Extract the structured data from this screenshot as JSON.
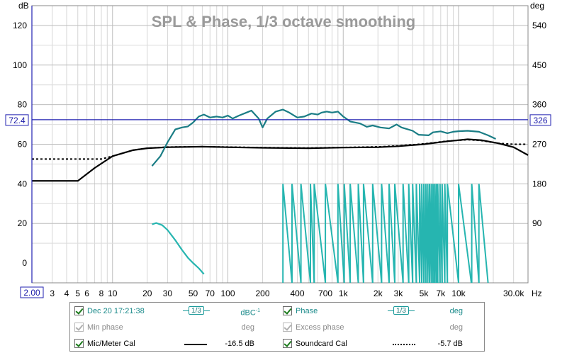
{
  "chart_data": {
    "type": "line",
    "title": "SPL & Phase, 1/3 octave smoothing",
    "left_axis": {
      "unit": "dB",
      "range": [
        -10,
        130
      ],
      "ticks": [
        0,
        20,
        40,
        60,
        80,
        100,
        120
      ]
    },
    "right_axis": {
      "unit": "deg",
      "range": [
        -45,
        585
      ],
      "ticks": [
        90,
        180,
        270,
        360,
        450,
        540
      ]
    },
    "x_axis": {
      "unit": "Hz",
      "scale": "log",
      "range": [
        2,
        40000
      ],
      "tick_labels": [
        {
          "v": 2,
          "t": "2.00"
        },
        {
          "v": 3,
          "t": "3"
        },
        {
          "v": 4,
          "t": "4"
        },
        {
          "v": 5,
          "t": "5"
        },
        {
          "v": 6,
          "t": "6"
        },
        {
          "v": 8,
          "t": "8"
        },
        {
          "v": 10,
          "t": "10"
        },
        {
          "v": 20,
          "t": "20"
        },
        {
          "v": 30,
          "t": "30"
        },
        {
          "v": 50,
          "t": "50"
        },
        {
          "v": 70,
          "t": "70"
        },
        {
          "v": 100,
          "t": "100"
        },
        {
          "v": 200,
          "t": "200"
        },
        {
          "v": 400,
          "t": "400"
        },
        {
          "v": 700,
          "t": "700"
        },
        {
          "v": 1000,
          "t": "1k"
        },
        {
          "v": 2000,
          "t": "2k"
        },
        {
          "v": 3000,
          "t": "3k"
        },
        {
          "v": 5000,
          "t": "5k"
        },
        {
          "v": 7000,
          "t": "7k"
        },
        {
          "v": 10000,
          "t": "10k"
        },
        {
          "v": 30000,
          "t": "30.0k"
        }
      ]
    },
    "cursor": {
      "db_label": "72.4",
      "deg_label": "326",
      "freq_label": "2.00",
      "db": 72.4
    },
    "grid": true,
    "series": [
      {
        "name": "Mic/Meter Cal",
        "color": "#000000",
        "style": "solid",
        "axis": "left",
        "points": [
          [
            2,
            41.5
          ],
          [
            5,
            41.5
          ],
          [
            7,
            48
          ],
          [
            10,
            54
          ],
          [
            15,
            57
          ],
          [
            20,
            58
          ],
          [
            30,
            58.5
          ],
          [
            60,
            58.8
          ],
          [
            100,
            58.5
          ],
          [
            200,
            58.2
          ],
          [
            500,
            58
          ],
          [
            1000,
            58.3
          ],
          [
            2000,
            58.5
          ],
          [
            3000,
            59
          ],
          [
            5000,
            60
          ],
          [
            8000,
            61.5
          ],
          [
            12000,
            62.5
          ],
          [
            16000,
            62
          ],
          [
            22000,
            60.5
          ],
          [
            30000,
            58.5
          ],
          [
            40000,
            54.5
          ]
        ]
      },
      {
        "name": "Soundcard Cal",
        "color": "#000000",
        "style": "dashed",
        "axis": "left",
        "points": [
          [
            2,
            52.5
          ],
          [
            8,
            52.5
          ],
          [
            10,
            54
          ],
          [
            15,
            57
          ],
          [
            20,
            58
          ],
          [
            30,
            58.6
          ],
          [
            60,
            58.8
          ],
          [
            100,
            58.6
          ],
          [
            200,
            58.3
          ],
          [
            500,
            58.1
          ],
          [
            1000,
            58.4
          ],
          [
            2000,
            58.7
          ],
          [
            3000,
            59.2
          ],
          [
            5000,
            60.2
          ],
          [
            8000,
            61.6
          ],
          [
            12000,
            62.3
          ],
          [
            16000,
            61.8
          ],
          [
            22000,
            60.5
          ],
          [
            30000,
            60
          ],
          [
            38000,
            60
          ]
        ]
      },
      {
        "name": "Dec 20 17:21:38",
        "color": "#1a7d85",
        "style": "solid",
        "axis": "left",
        "points": [
          [
            22,
            49
          ],
          [
            26,
            54
          ],
          [
            30,
            61
          ],
          [
            35,
            67.5
          ],
          [
            40,
            68.5
          ],
          [
            45,
            69
          ],
          [
            50,
            71
          ],
          [
            56,
            74
          ],
          [
            62,
            75
          ],
          [
            70,
            73.5
          ],
          [
            80,
            74
          ],
          [
            90,
            73.5
          ],
          [
            100,
            74.5
          ],
          [
            110,
            73
          ],
          [
            125,
            74.5
          ],
          [
            145,
            76
          ],
          [
            160,
            77
          ],
          [
            185,
            73
          ],
          [
            200,
            68.5
          ],
          [
            220,
            73
          ],
          [
            260,
            76.5
          ],
          [
            300,
            77.5
          ],
          [
            340,
            76
          ],
          [
            400,
            73.5
          ],
          [
            460,
            74
          ],
          [
            530,
            75.5
          ],
          [
            600,
            75
          ],
          [
            650,
            76
          ],
          [
            720,
            76.5
          ],
          [
            800,
            76
          ],
          [
            900,
            76.5
          ],
          [
            1000,
            74
          ],
          [
            1150,
            71.5
          ],
          [
            1400,
            70.5
          ],
          [
            1600,
            68.8
          ],
          [
            1800,
            69.5
          ],
          [
            2100,
            68.5
          ],
          [
            2500,
            68
          ],
          [
            2900,
            70
          ],
          [
            3200,
            68.5
          ],
          [
            4000,
            66.8
          ],
          [
            4500,
            64.8
          ],
          [
            5500,
            64.5
          ],
          [
            6000,
            66
          ],
          [
            7000,
            66.5
          ],
          [
            8000,
            65.6
          ],
          [
            9000,
            66.3
          ],
          [
            10000,
            66.6
          ],
          [
            12000,
            66.8
          ],
          [
            15000,
            66.3
          ],
          [
            18000,
            64.5
          ],
          [
            21000,
            62.7
          ]
        ]
      },
      {
        "name": "Phase",
        "color": "#26b5b0",
        "style": "solid",
        "axis": "right",
        "points": [
          [
            22,
            88
          ],
          [
            24,
            91
          ],
          [
            27,
            86
          ],
          [
            30,
            75
          ],
          [
            35,
            52
          ],
          [
            40,
            30
          ],
          [
            45,
            12
          ],
          [
            50,
            0
          ],
          [
            56,
            -12
          ],
          [
            62,
            -25
          ]
        ]
      }
    ]
  },
  "legend": {
    "row1": {
      "left_label": "Dec 20 17:21:38",
      "left_smoothing": "1/3",
      "left_unit": "dBC",
      "left_unit_sup": "-1",
      "right_label": "Phase",
      "right_smoothing": "1/3",
      "right_unit": "deg"
    },
    "row2": {
      "left_label": "Min phase",
      "left_unit": "deg",
      "right_label": "Excess phase",
      "right_unit": "deg"
    },
    "row3": {
      "left_label": "Mic/Meter Cal",
      "left_value": "-16.5 dB",
      "right_label": "Soundcard Cal",
      "right_value": "-5.7 dB"
    }
  }
}
